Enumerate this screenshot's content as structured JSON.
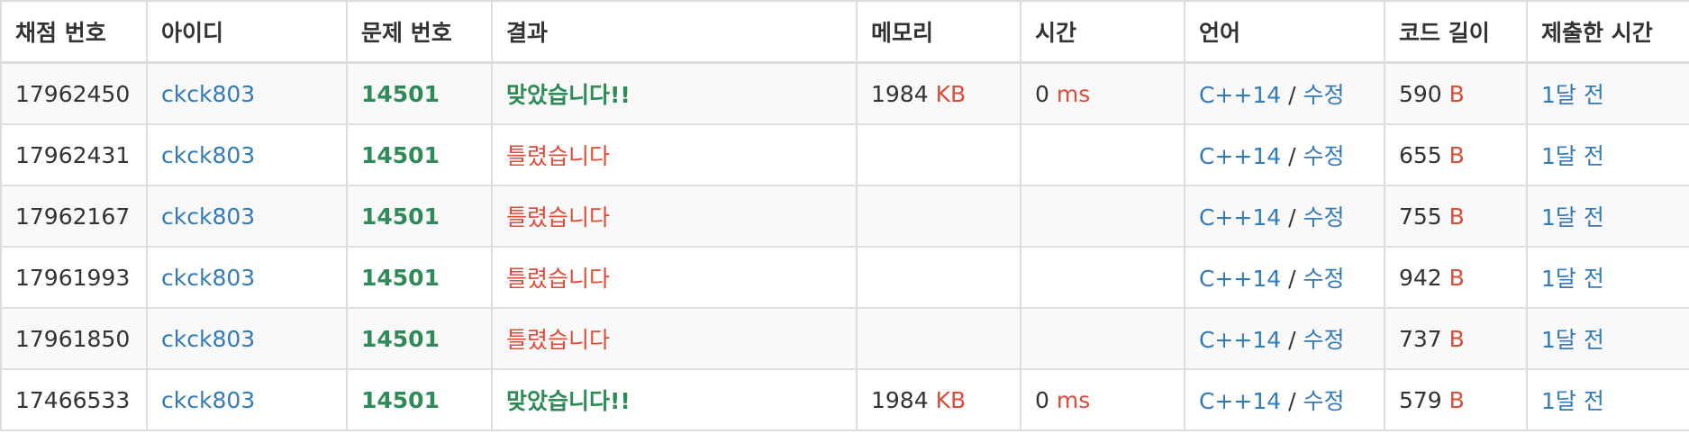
{
  "headers": [
    "채점 번호",
    "아이디",
    "문제 번호",
    "결과",
    "메모리",
    "시간",
    "언어",
    "코드 길이",
    "제출한 시간"
  ],
  "units": {
    "memory": "KB",
    "time": "ms",
    "code": "B"
  },
  "lang_separator": "/",
  "colors": {
    "accepted": "#2e8b57",
    "wrong": "#dd4b39",
    "link": "#337ab7",
    "unit": "#dd4b39"
  },
  "rows": [
    {
      "id": "17962450",
      "user": "ckck803",
      "problem": "14501",
      "result": "맞았습니다!!",
      "status": "accepted",
      "memory": "1984",
      "time": "0",
      "lang": "C++14",
      "edit": "수정",
      "code_len": "590",
      "submitted": "1달 전"
    },
    {
      "id": "17962431",
      "user": "ckck803",
      "problem": "14501",
      "result": "틀렸습니다",
      "status": "wrong",
      "memory": "",
      "time": "",
      "lang": "C++14",
      "edit": "수정",
      "code_len": "655",
      "submitted": "1달 전"
    },
    {
      "id": "17962167",
      "user": "ckck803",
      "problem": "14501",
      "result": "틀렸습니다",
      "status": "wrong",
      "memory": "",
      "time": "",
      "lang": "C++14",
      "edit": "수정",
      "code_len": "755",
      "submitted": "1달 전"
    },
    {
      "id": "17961993",
      "user": "ckck803",
      "problem": "14501",
      "result": "틀렸습니다",
      "status": "wrong",
      "memory": "",
      "time": "",
      "lang": "C++14",
      "edit": "수정",
      "code_len": "942",
      "submitted": "1달 전"
    },
    {
      "id": "17961850",
      "user": "ckck803",
      "problem": "14501",
      "result": "틀렸습니다",
      "status": "wrong",
      "memory": "",
      "time": "",
      "lang": "C++14",
      "edit": "수정",
      "code_len": "737",
      "submitted": "1달 전"
    },
    {
      "id": "17466533",
      "user": "ckck803",
      "problem": "14501",
      "result": "맞았습니다!!",
      "status": "accepted",
      "memory": "1984",
      "time": "0",
      "lang": "C++14",
      "edit": "수정",
      "code_len": "579",
      "submitted": "1달 전"
    }
  ]
}
